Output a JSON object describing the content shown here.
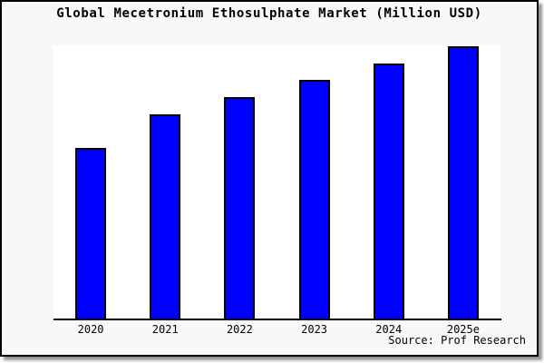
{
  "figure": {
    "title": "Global Mecetronium Ethosulphate Market (Million USD)",
    "source": "Source: Prof Research"
  },
  "colors": {
    "bar_fill": "#0000FF",
    "bar_border": "#000000",
    "figure_bg": "#F8F8F8",
    "plot_bg": "#FFFFFF",
    "figure_border": "#000000",
    "text": "#000000"
  },
  "chart_data": {
    "type": "bar",
    "title": "Global Mecetronium Ethosulphate Market (Million USD)",
    "categories": [
      "2020",
      "2021",
      "2022",
      "2023",
      "2024",
      "2025e"
    ],
    "values": [
      10,
      12,
      13,
      14,
      15,
      16
    ],
    "values_note": "relative units estimated from bar pixel heights; y-axis has no tick labels",
    "xlabel": "",
    "ylabel": "",
    "ylim": [
      0,
      16.05
    ],
    "grid": false,
    "legend": false,
    "y_axis_labeled": false
  }
}
